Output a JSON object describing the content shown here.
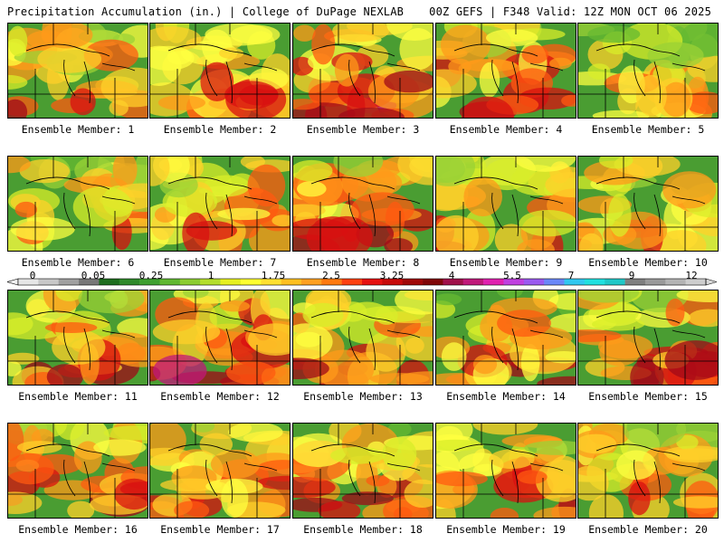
{
  "header": {
    "title": "Precipitation Accumulation (in.) | College of DuPage NEXLAB",
    "run_info": "00Z GEFS | F348 Valid: 12Z MON OCT 06 2025"
  },
  "panel_label_prefix": "Ensemble Member: ",
  "members": [
    {
      "label": "Ensemble Member: 1",
      "intensity": 0.55
    },
    {
      "label": "Ensemble Member: 2",
      "intensity": 0.6
    },
    {
      "label": "Ensemble Member: 3",
      "intensity": 0.85
    },
    {
      "label": "Ensemble Member: 4",
      "intensity": 0.7
    },
    {
      "label": "Ensemble Member: 5",
      "intensity": 0.4
    },
    {
      "label": "Ensemble Member: 6",
      "intensity": 0.5
    },
    {
      "label": "Ensemble Member: 7",
      "intensity": 0.62
    },
    {
      "label": "Ensemble Member: 8",
      "intensity": 0.72
    },
    {
      "label": "Ensemble Member: 9",
      "intensity": 0.5
    },
    {
      "label": "Ensemble Member: 10",
      "intensity": 0.55
    },
    {
      "label": "Ensemble Member: 11",
      "intensity": 0.68
    },
    {
      "label": "Ensemble Member: 12",
      "intensity": 0.9
    },
    {
      "label": "Ensemble Member: 13",
      "intensity": 0.72
    },
    {
      "label": "Ensemble Member: 14",
      "intensity": 0.58
    },
    {
      "label": "Ensemble Member: 15",
      "intensity": 0.75
    },
    {
      "label": "Ensemble Member: 16",
      "intensity": 0.78
    },
    {
      "label": "Ensemble Member: 17",
      "intensity": 0.6
    },
    {
      "label": "Ensemble Member: 18",
      "intensity": 0.62
    },
    {
      "label": "Ensemble Member: 19",
      "intensity": 0.66
    },
    {
      "label": "Ensemble Member: 20",
      "intensity": 0.64
    }
  ],
  "colorbar": {
    "labels": [
      "0",
      "0.05",
      "0.25",
      "1",
      "1.75",
      "2.5",
      "3.25",
      "4",
      "5.5",
      "7",
      "9",
      "12"
    ],
    "colors": [
      "#e6e6e6",
      "#c8c8c8",
      "#a0a0a0",
      "#787878",
      "#1e6e1e",
      "#2f8a2a",
      "#3fa030",
      "#60b830",
      "#8ccd30",
      "#b4de2c",
      "#e6f020",
      "#ffff30",
      "#ffe030",
      "#ffc020",
      "#ffa020",
      "#ff7a10",
      "#ff4010",
      "#e61010",
      "#c80a0a",
      "#a00808",
      "#800608",
      "#a0104a",
      "#c0187a",
      "#e020b0",
      "#c040e0",
      "#9a5af0",
      "#6a88f8",
      "#30c8f0",
      "#20e0e0",
      "#20c8c8",
      "#808080",
      "#9a9a9a",
      "#b4b4b4",
      "#cdcdcd"
    ]
  }
}
